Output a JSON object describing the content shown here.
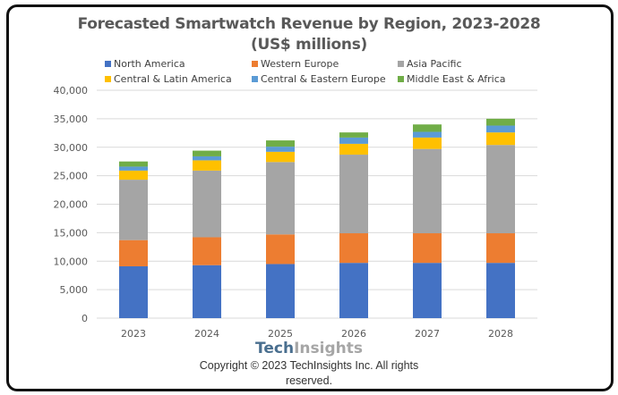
{
  "chart_data": {
    "type": "bar",
    "stacked": true,
    "title": "Forecasted Smartwatch Revenue by Region, 2023-2028",
    "subtitle": "(US$ millions)",
    "xlabel": "",
    "ylabel": "",
    "ylim": [
      0,
      40000
    ],
    "yticks": [
      0,
      5000,
      10000,
      15000,
      20000,
      25000,
      30000,
      35000,
      40000
    ],
    "ytick_labels": [
      "0",
      "5,000",
      "10,000",
      "15,000",
      "20,000",
      "25,000",
      "30,000",
      "35,000",
      "40,000"
    ],
    "grid": true,
    "legend_position": "top",
    "categories": [
      "2023",
      "2024",
      "2025",
      "2026",
      "2027",
      "2028"
    ],
    "series": [
      {
        "name": "North America",
        "color": "#4472c4",
        "values": [
          9100,
          9300,
          9500,
          9700,
          9700,
          9700
        ]
      },
      {
        "name": "Western Europe",
        "color": "#ed7d31",
        "values": [
          4600,
          4900,
          5200,
          5200,
          5200,
          5200
        ]
      },
      {
        "name": "Asia Pacific",
        "color": "#a5a5a5",
        "values": [
          10600,
          11700,
          12700,
          13800,
          14800,
          15500
        ]
      },
      {
        "name": "Central & Latin America",
        "color": "#ffc000",
        "values": [
          1600,
          1800,
          1800,
          1900,
          2000,
          2200
        ]
      },
      {
        "name": "Central & Eastern Europe",
        "color": "#5b9bd5",
        "values": [
          700,
          700,
          900,
          1100,
          1000,
          1200
        ]
      },
      {
        "name": "Middle East & Africa",
        "color": "#70ad47",
        "values": [
          900,
          1000,
          1100,
          900,
          1300,
          1200
        ]
      }
    ]
  },
  "branding": {
    "logo_part1": "Tech",
    "logo_part2": "Insights",
    "copyright_line1": "Copyright © 2023 TechInsights Inc.  All rights",
    "copyright_line2": "reserved."
  }
}
